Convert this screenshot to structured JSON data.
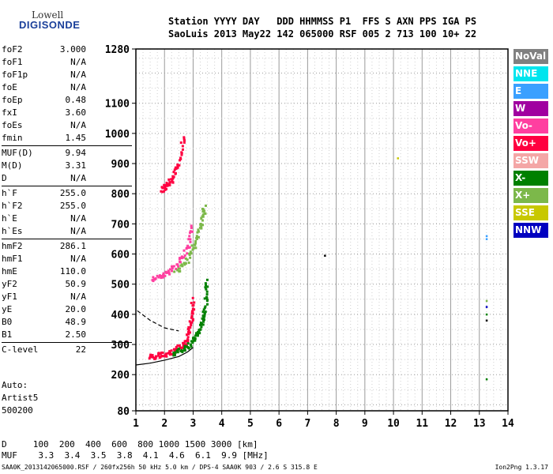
{
  "logo": {
    "line1": "Lowell",
    "line2": "DIGISONDE"
  },
  "header": {
    "labels": "Station YYYY DAY   DDD HHMMSS P1  FFS S AXN PPS IGA PS",
    "values": "SaoLuis 2013 May22 142 065000 RSF 005 2 713 100 10+ 22"
  },
  "params": [
    {
      "k": "foF2",
      "v": "3.000"
    },
    {
      "k": "foF1",
      "v": "N/A"
    },
    {
      "k": "foF1p",
      "v": "N/A"
    },
    {
      "k": "foE",
      "v": "N/A"
    },
    {
      "k": "foEp",
      "v": "0.48"
    },
    {
      "k": "fxI",
      "v": "3.60"
    },
    {
      "k": "foEs",
      "v": "N/A"
    },
    {
      "k": "fmin",
      "v": "1.45"
    },
    {
      "k": "MUF(D)",
      "v": "9.94"
    },
    {
      "k": "M(D)",
      "v": "3.31"
    },
    {
      "k": "D",
      "v": "N/A"
    },
    {
      "k": "h`F",
      "v": "255.0"
    },
    {
      "k": "h`F2",
      "v": "255.0"
    },
    {
      "k": "h`E",
      "v": "N/A"
    },
    {
      "k": "h`Es",
      "v": "N/A"
    },
    {
      "k": "hmF2",
      "v": "286.1"
    },
    {
      "k": "hmF1",
      "v": "N/A"
    },
    {
      "k": "hmE",
      "v": "110.0"
    },
    {
      "k": "yF2",
      "v": "50.9"
    },
    {
      "k": "yF1",
      "v": "N/A"
    },
    {
      "k": "yE",
      "v": "20.0"
    },
    {
      "k": "B0",
      "v": "48.9"
    },
    {
      "k": "B1",
      "v": "2.50"
    },
    {
      "k": "C-level",
      "v": "22"
    }
  ],
  "extras": [
    "Auto:",
    "Artist5",
    "500200"
  ],
  "dmuf": {
    "d_row": "D     100  200  400  600  800 1000 1500 3000 [km]",
    "muf_row": "MUF    3.3  3.4  3.5  3.8  4.1  4.6  6.1  9.9 [MHz]"
  },
  "footer": "SAA0K_2013142065000.RSF / 260fx256h 50 kHz 5.0 km / DPS-4 SAA0K 903 / 2.6 S 315.8 E",
  "footer_right": "Ion2Png 1.3.17",
  "legend": [
    {
      "label": "NoVal",
      "color": "#808080"
    },
    {
      "label": "NNE",
      "color": "#00e5ee"
    },
    {
      "label": "E",
      "color": "#3aa0ff"
    },
    {
      "label": "W",
      "color": "#a000a0"
    },
    {
      "label": "Vo-",
      "color": "#ff3fa0"
    },
    {
      "label": "Vo+",
      "color": "#ff0040"
    },
    {
      "label": "SSW",
      "color": "#f4a6a6"
    },
    {
      "label": "X-",
      "color": "#008000"
    },
    {
      "label": "X+",
      "color": "#7cb84a"
    },
    {
      "label": "SSE",
      "color": "#c8c800"
    },
    {
      "label": "NNW",
      "color": "#0000c0"
    }
  ],
  "chart_data": {
    "type": "scatter",
    "xlim": [
      1,
      14
    ],
    "ylim": [
      80,
      1280
    ],
    "xticks": [
      1,
      2,
      3,
      4,
      5,
      6,
      7,
      8,
      9,
      10,
      11,
      12,
      13,
      14
    ],
    "yticks": [
      80,
      200,
      300,
      400,
      500,
      600,
      700,
      800,
      900,
      1000,
      1100,
      1280
    ],
    "grid": true,
    "traces": [
      {
        "name": "O-trace F2",
        "color": "#ff0040",
        "x": [
          1.5,
          1.8,
          2.1,
          2.4,
          2.7,
          2.85,
          2.95,
          3.0
        ],
        "y": [
          258,
          262,
          268,
          280,
          300,
          330,
          380,
          450
        ]
      },
      {
        "name": "X-trace F2",
        "color": "#008000",
        "x": [
          2.3,
          2.7,
          3.0,
          3.2,
          3.35,
          3.45,
          3.5
        ],
        "y": [
          270,
          285,
          310,
          340,
          380,
          430,
          520
        ]
      },
      {
        "name": "O-trace 2nd hop",
        "color": "#ff3fa0",
        "x": [
          1.6,
          2.0,
          2.4,
          2.8,
          3.0
        ],
        "y": [
          515,
          530,
          560,
          610,
          700
        ]
      },
      {
        "name": "X-trace 2nd hop",
        "color": "#7cb84a",
        "x": [
          2.4,
          2.8,
          3.1,
          3.3,
          3.4
        ],
        "y": [
          540,
          580,
          640,
          700,
          760
        ]
      },
      {
        "name": "O-trace 3rd hop",
        "color": "#ff0040",
        "x": [
          1.9,
          2.1,
          2.3,
          2.5,
          2.7
        ],
        "y": [
          810,
          830,
          850,
          900,
          1000
        ]
      }
    ],
    "profile_curve": {
      "x": [
        1.0,
        1.5,
        2.0,
        2.5,
        2.8,
        3.0
      ],
      "y": [
        232,
        238,
        248,
        260,
        275,
        290
      ]
    },
    "dashed_curve": {
      "x": [
        1.05,
        1.5,
        2.0,
        2.5
      ],
      "y": [
        412,
        380,
        355,
        345
      ]
    },
    "isolated_points": [
      {
        "x": 7.6,
        "y": 595,
        "color": "#000000"
      },
      {
        "x": 10.15,
        "y": 918,
        "color": "#c8c800"
      },
      {
        "x": 13.25,
        "y": 660,
        "color": "#3aa0ff"
      },
      {
        "x": 13.25,
        "y": 650,
        "color": "#3aa0ff"
      },
      {
        "x": 13.25,
        "y": 445,
        "color": "#7cb84a"
      },
      {
        "x": 13.25,
        "y": 425,
        "color": "#0000c0"
      },
      {
        "x": 13.25,
        "y": 400,
        "color": "#008000"
      },
      {
        "x": 13.25,
        "y": 380,
        "color": "#000000"
      },
      {
        "x": 13.25,
        "y": 185,
        "color": "#008000"
      }
    ]
  }
}
